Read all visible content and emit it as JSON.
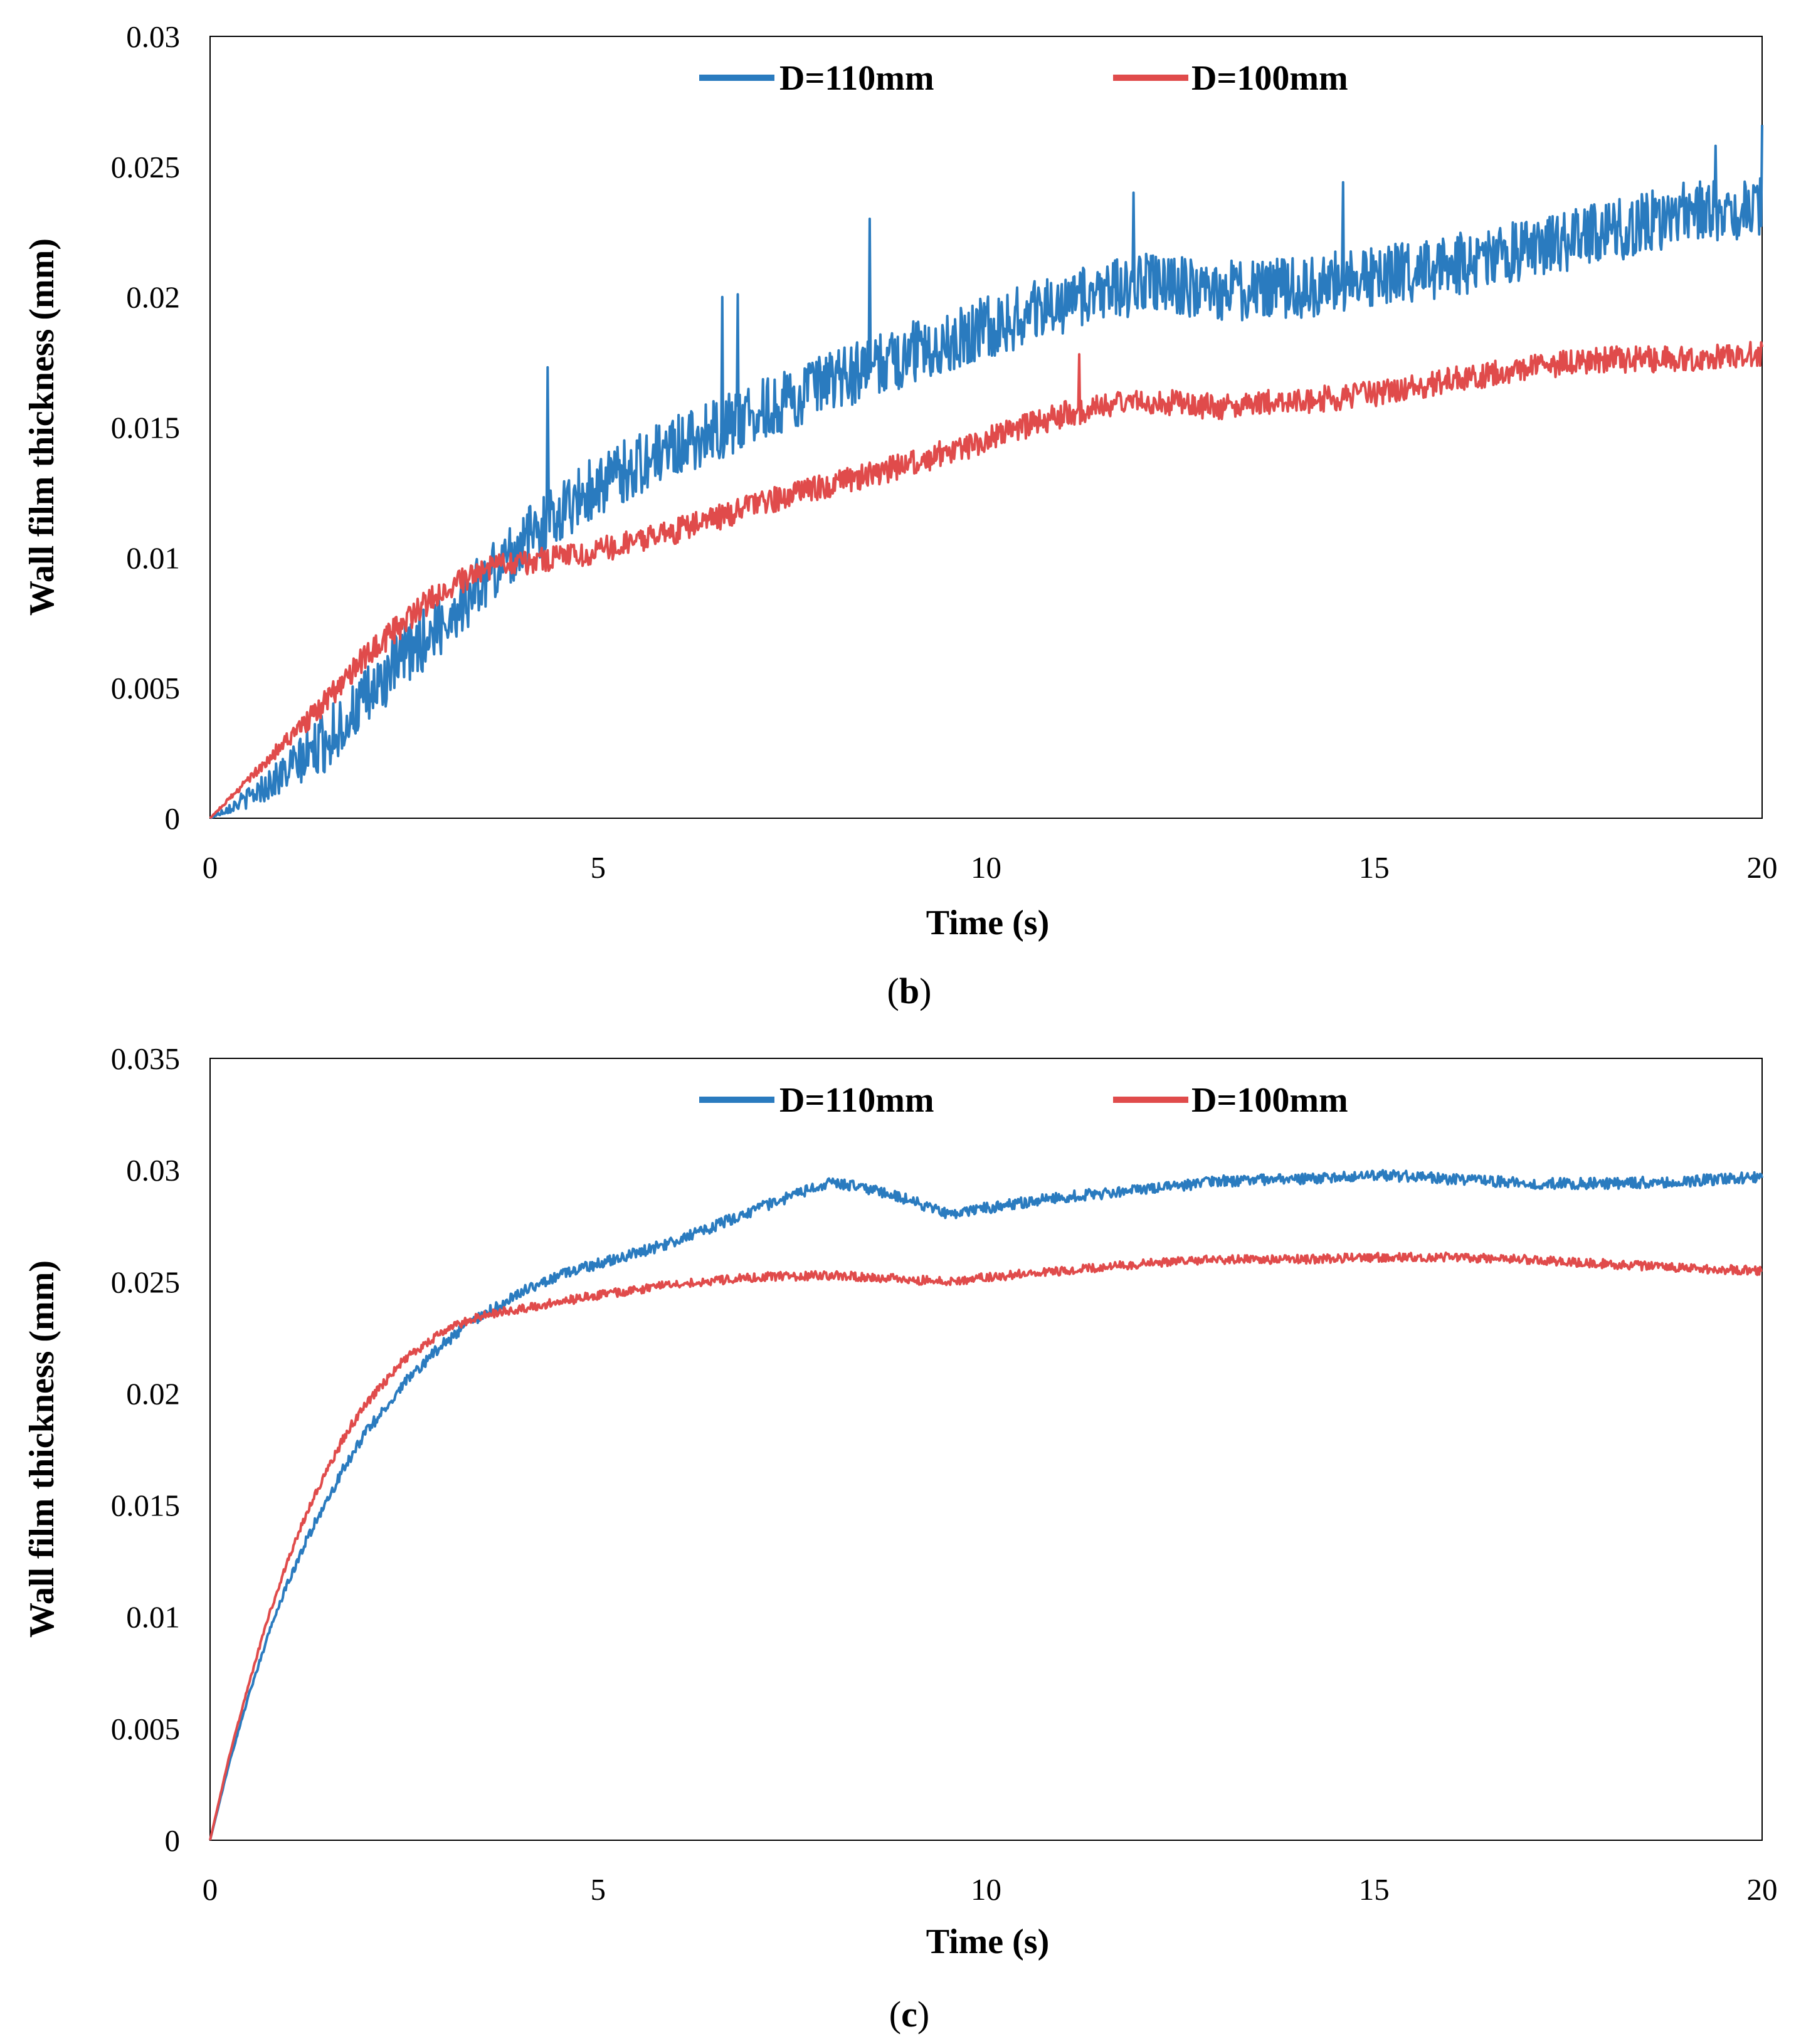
{
  "chart_data": [
    {
      "id": "b",
      "type": "line",
      "caption_letter": "b",
      "xlabel": "Time (s)",
      "ylabel": "Wall film thickness (mm)",
      "xlim": [
        0,
        20
      ],
      "ylim": [
        0,
        0.03
      ],
      "xticks": [
        "0",
        "5",
        "10",
        "15",
        "20"
      ],
      "xtick_values": [
        0,
        5,
        10,
        15,
        20
      ],
      "yticks": [
        "0",
        "0.005",
        "0.01",
        "0.015",
        "0.02",
        "0.025",
        "0.03"
      ],
      "ytick_values": [
        0,
        0.005,
        0.01,
        0.015,
        0.02,
        0.025,
        0.03
      ],
      "legend_position": "top-center",
      "grid": false,
      "series": [
        {
          "name": "D=110mm",
          "color": "#2a7bbf",
          "noise": 0.0012,
          "spikes": [
            [
              4.35,
              0.0173
            ],
            [
              6.6,
              0.02
            ],
            [
              6.8,
              0.0201
            ],
            [
              8.5,
              0.023
            ],
            [
              11.9,
              0.024
            ],
            [
              14.6,
              0.0244
            ],
            [
              19.4,
              0.0258
            ],
            [
              20.0,
              0.0266
            ]
          ],
          "x": [
            0,
            0.5,
            1,
            1.5,
            2,
            2.5,
            3,
            3.5,
            4,
            4.5,
            5,
            6,
            7,
            8,
            9,
            10,
            11,
            12,
            13,
            14,
            15,
            16,
            17,
            18,
            19,
            20
          ],
          "y": [
            0,
            0.0008,
            0.0018,
            0.003,
            0.0045,
            0.0062,
            0.0075,
            0.009,
            0.0105,
            0.0118,
            0.0128,
            0.0143,
            0.0155,
            0.0167,
            0.0178,
            0.0188,
            0.0198,
            0.0205,
            0.0202,
            0.0203,
            0.0208,
            0.0212,
            0.0218,
            0.0225,
            0.0232,
            0.0235
          ]
        },
        {
          "name": "D=100mm",
          "color": "#e04b4b",
          "noise": 0.0005,
          "spikes": [
            [
              11.2,
              0.0178
            ]
          ],
          "x": [
            0,
            0.5,
            1,
            1.5,
            2,
            2.5,
            3,
            3.5,
            4,
            4.5,
            5,
            6,
            7,
            8,
            9,
            10,
            11,
            12,
            13,
            14,
            15,
            16,
            17,
            18,
            19,
            20
          ],
          "y": [
            0,
            0.0015,
            0.003,
            0.0045,
            0.0062,
            0.0075,
            0.0088,
            0.0095,
            0.0098,
            0.01,
            0.0103,
            0.011,
            0.012,
            0.0128,
            0.0136,
            0.0145,
            0.0155,
            0.016,
            0.0158,
            0.016,
            0.0163,
            0.0168,
            0.0173,
            0.0176,
            0.0176,
            0.0178
          ]
        }
      ]
    },
    {
      "id": "c",
      "type": "line",
      "caption_letter": "c",
      "xlabel": "Time (s)",
      "ylabel": "Wall film thickness (mm)",
      "xlim": [
        0,
        20
      ],
      "ylim": [
        0,
        0.035
      ],
      "xticks": [
        "0",
        "5",
        "10",
        "15",
        "20"
      ],
      "xtick_values": [
        0,
        5,
        10,
        15,
        20
      ],
      "yticks": [
        "0",
        "0.005",
        "0.01",
        "0.015",
        "0.02",
        "0.025",
        "0.03",
        "0.035"
      ],
      "ytick_values": [
        0,
        0.005,
        0.01,
        0.015,
        0.02,
        0.025,
        0.03,
        0.035
      ],
      "legend_position": "top-center",
      "grid": false,
      "series": [
        {
          "name": "D=110mm",
          "color": "#2a7bbf",
          "noise": 0.00025,
          "spikes": [],
          "x": [
            0,
            0.25,
            0.5,
            0.75,
            1,
            1.25,
            1.5,
            1.75,
            2,
            2.5,
            3,
            3.5,
            4,
            4.5,
            5,
            6,
            7,
            8,
            9,
            9.5,
            10,
            11,
            12,
            13,
            14,
            15,
            16,
            17,
            18,
            19,
            20
          ],
          "y": [
            0,
            0.0035,
            0.0065,
            0.0092,
            0.0115,
            0.0135,
            0.0152,
            0.0168,
            0.0182,
            0.0205,
            0.0222,
            0.0235,
            0.0245,
            0.0253,
            0.0258,
            0.0268,
            0.0282,
            0.0295,
            0.0287,
            0.028,
            0.0283,
            0.0288,
            0.0291,
            0.0295,
            0.0296,
            0.0298,
            0.0296,
            0.0294,
            0.0294,
            0.0295,
            0.0297
          ]
        },
        {
          "name": "D=100mm",
          "color": "#e04b4b",
          "noise": 0.0002,
          "spikes": [],
          "x": [
            0,
            0.25,
            0.5,
            0.75,
            1,
            1.25,
            1.5,
            1.75,
            2,
            2.5,
            3,
            3.5,
            4,
            4.5,
            5,
            6,
            7,
            8,
            9,
            9.5,
            10,
            11,
            12,
            13,
            14,
            15,
            16,
            17,
            18,
            19,
            20
          ],
          "y": [
            0,
            0.0038,
            0.007,
            0.01,
            0.0125,
            0.0147,
            0.0165,
            0.0182,
            0.0195,
            0.0215,
            0.0228,
            0.0235,
            0.0238,
            0.0241,
            0.0244,
            0.0249,
            0.0252,
            0.0253,
            0.0251,
            0.025,
            0.0252,
            0.0255,
            0.0258,
            0.026,
            0.026,
            0.0261,
            0.0261,
            0.026,
            0.0258,
            0.0256,
            0.0255
          ]
        }
      ]
    }
  ]
}
